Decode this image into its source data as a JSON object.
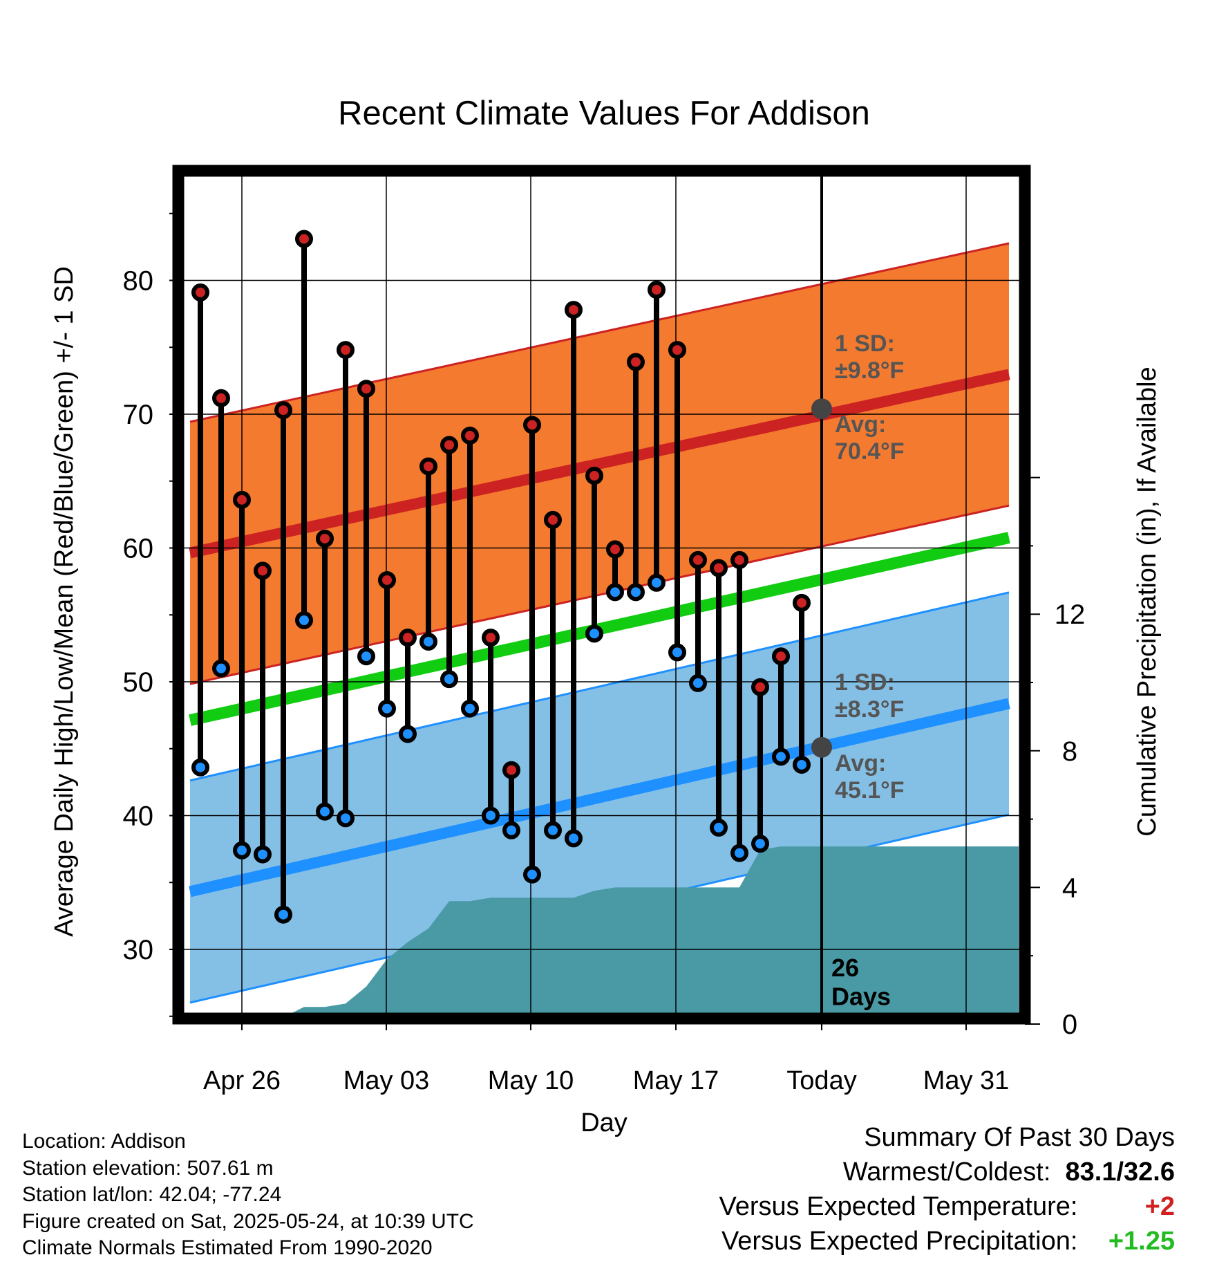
{
  "chart_data": {
    "type": "line",
    "title": "Recent Climate Values For Addison",
    "xlabel": "Day",
    "ylabel": "Average Daily High/Low/Mean (Red/Blue/Green) +/- 1 SD",
    "ylabel_right": "Cumulative Precipitation (in), If Available",
    "ylim": [
      25,
      88
    ],
    "ylim_right": [
      0,
      30
    ],
    "x_tick_labels": [
      "Apr 26",
      "May 03",
      "May 10",
      "May 17",
      "Today",
      "May 31"
    ],
    "y_tick_labels": [
      "30",
      "40",
      "50",
      "60",
      "70",
      "80"
    ],
    "y_right_tick_labels": [
      "0",
      "4",
      "8",
      "12"
    ],
    "grid": true,
    "today_label": "26\nDays",
    "days": [
      "Apr 24",
      "Apr 25",
      "Apr 26",
      "Apr 27",
      "Apr 28",
      "Apr 29",
      "Apr 30",
      "May 01",
      "May 02",
      "May 03",
      "May 04",
      "May 05",
      "May 06",
      "May 07",
      "May 08",
      "May 09",
      "May 10",
      "May 11",
      "May 12",
      "May 13",
      "May 14",
      "May 15",
      "May 16",
      "May 17",
      "May 18",
      "May 19",
      "May 20",
      "May 21",
      "May 22",
      "May 23"
    ],
    "highs": [
      79.1,
      71.2,
      63.6,
      58.3,
      70.3,
      83.1,
      60.7,
      74.8,
      71.9,
      57.6,
      53.3,
      66.1,
      67.7,
      68.4,
      53.3,
      43.4,
      69.2,
      62.1,
      77.8,
      65.4,
      59.9,
      73.9,
      79.3,
      74.8,
      59.1,
      58.5,
      59.1,
      49.6,
      51.9,
      55.9
    ],
    "lows": [
      43.6,
      51.0,
      37.4,
      37.1,
      32.6,
      54.6,
      40.3,
      39.8,
      51.9,
      48.0,
      46.1,
      53.0,
      50.2,
      48.0,
      40.0,
      38.9,
      35.6,
      38.9,
      38.3,
      53.6,
      56.7,
      56.7,
      57.4,
      52.2,
      49.9,
      39.1,
      37.2,
      37.9,
      44.4,
      43.8
    ],
    "normal_high": {
      "start": 59.8,
      "today": 70.4,
      "end": 72.8,
      "sd": 9.8,
      "sd_label": "1 SD:\n±9.8°F",
      "avg_label": "Avg:\n70.4°F"
    },
    "normal_low": {
      "start": 34.5,
      "today": 45.1,
      "end": 48.2,
      "sd": 8.3,
      "sd_label": "1 SD:\n±8.3°F",
      "avg_label": "Avg:\n45.1°F"
    },
    "normal_mean": {
      "start": 47.3,
      "end": 60.6
    },
    "cumulative_precip_in": [
      0.0,
      0.0,
      0.2,
      0.2,
      0.2,
      0.5,
      0.5,
      0.6,
      1.1,
      1.9,
      2.4,
      2.8,
      3.6,
      3.6,
      3.7,
      3.7,
      3.7,
      3.7,
      3.7,
      3.9,
      4.0,
      4.0,
      4.0,
      4.0,
      4.0,
      4.0,
      4.0,
      5.1,
      5.2,
      5.2
    ],
    "precip_after_today_in": 5.2,
    "colors": {
      "high": "#cc2222",
      "low": "#1e90ff",
      "mean": "#11cc11",
      "high_band": "#f47a2f",
      "low_band": "#84c0e6",
      "precip": "#4a9aa6",
      "today_marker": "#444444"
    }
  },
  "station_info": [
    "Location: Addison",
    "Station elevation: 507.61 m",
    "Station lat/lon: 42.04; -77.24",
    "Figure created on Sat, 2025-05-24, at 10:39 UTC",
    "Climate Normals Estimated From 1990-2020"
  ],
  "summary": {
    "title": "Summary Of Past 30 Days",
    "warmest_coldest_label": "Warmest/Coldest:",
    "warmest_coldest_value": "83.1/32.6",
    "temp_label": "Versus Expected Temperature:",
    "temp_value": "+2",
    "temp_color": "#d02020",
    "precip_label": "Versus Expected Precipitation:",
    "precip_value": "+1.25",
    "precip_color": "#22bb22"
  }
}
